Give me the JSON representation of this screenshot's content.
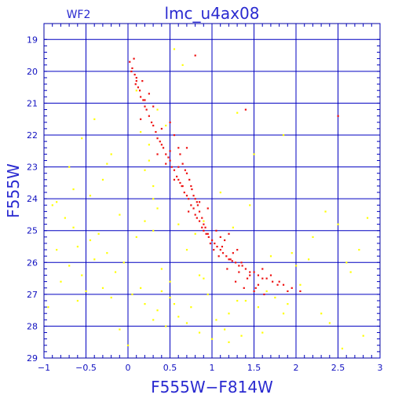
{
  "chart_data": {
    "type": "scatter",
    "title": "lmc_u4ax08",
    "subtitle": "WF2",
    "xlabel": "F555W−F814W",
    "ylabel": "F555W",
    "xlim": [
      -1,
      3
    ],
    "ylim": [
      29,
      18.5
    ],
    "y_inverted": true,
    "grid": true,
    "xticks": [
      -1,
      -0.5,
      0,
      0.5,
      1,
      1.5,
      2,
      2.5,
      3
    ],
    "xtick_labels": [
      "−1",
      "−0.5",
      "0",
      "0.5",
      "1",
      "1.5",
      "2",
      "2.5",
      "3"
    ],
    "yticks": [
      19,
      20,
      21,
      22,
      23,
      24,
      25,
      26,
      27,
      28,
      29
    ],
    "ytick_labels": [
      "19",
      "20",
      "21",
      "22",
      "23",
      "24",
      "25",
      "26",
      "27",
      "28",
      "29"
    ],
    "series": [
      {
        "color": "#ffff00",
        "x": [
          -0.85,
          -0.7,
          -0.55,
          -0.4,
          -0.3,
          -0.2,
          -0.8,
          -0.6,
          -0.45,
          -0.25,
          -0.9,
          -0.75,
          -0.5,
          -0.35,
          -0.15,
          -0.95,
          -0.65,
          -0.05,
          0.1,
          0.2,
          0.3,
          0.35,
          0.4,
          0.5,
          0.55,
          0.2,
          0.25,
          0.3,
          0.15,
          0.1,
          0.35,
          0.45,
          0.25,
          0.3,
          -0.3,
          -0.2,
          -0.1,
          -0.55,
          -0.7,
          -0.85,
          -0.4,
          -0.6,
          0.05,
          0.15,
          0.35,
          0.45,
          0.6,
          0.7,
          0.85,
          0.9,
          1.0,
          1.05,
          1.15,
          1.2,
          1.35,
          1.4,
          1.55,
          1.65,
          1.75,
          1.9,
          2.05,
          2.2,
          2.35,
          2.5,
          2.6,
          2.75,
          2.85,
          2.65,
          2.4,
          2.15,
          1.85,
          1.6,
          1.3,
          0.95,
          0.75,
          0.5,
          0.4,
          0.3,
          0.2,
          0.0,
          -0.1,
          0.6,
          0.7,
          0.8,
          0.9,
          1.1,
          1.25,
          1.45,
          1.7,
          2.0,
          1.3,
          1.5,
          1.2,
          2.3,
          2.55,
          2.8,
          1.85,
          0.55,
          0.65,
          -0.65,
          -0.45,
          -0.25,
          0.85,
          1.95
        ],
        "y": [
          25.6,
          26.1,
          26.4,
          25.9,
          26.8,
          27.1,
          26.6,
          27.2,
          25.3,
          25.7,
          24.2,
          24.6,
          26.9,
          25.1,
          26.3,
          27.4,
          24.9,
          26.0,
          25.2,
          24.7,
          25.0,
          24.3,
          26.2,
          26.6,
          27.3,
          23.1,
          22.8,
          23.6,
          21.9,
          20.6,
          21.2,
          21.7,
          22.3,
          24.0,
          23.4,
          22.6,
          24.5,
          22.1,
          23.0,
          24.1,
          21.5,
          25.5,
          27.0,
          26.8,
          27.5,
          28.0,
          27.7,
          27.9,
          28.2,
          26.5,
          28.4,
          27.8,
          28.1,
          27.6,
          28.3,
          27.2,
          27.4,
          26.9,
          27.1,
          27.3,
          26.7,
          25.2,
          24.4,
          24.8,
          26.0,
          25.6,
          24.6,
          26.3,
          27.9,
          25.9,
          27.6,
          28.2,
          27.2,
          27.0,
          27.4,
          27.1,
          26.9,
          27.8,
          27.3,
          28.6,
          28.1,
          24.8,
          25.6,
          25.1,
          24.7,
          23.8,
          24.9,
          24.2,
          25.8,
          26.1,
          21.3,
          22.6,
          28.5,
          27.6,
          28.7,
          28.3,
          22.0,
          19.3,
          19.8,
          23.7,
          23.9,
          22.9,
          26.4,
          25.7
        ]
      },
      {
        "color": "#ee1111",
        "x": [
          0.02,
          0.05,
          0.08,
          0.1,
          0.04,
          0.12,
          0.14,
          0.09,
          0.18,
          0.2,
          0.22,
          0.15,
          0.25,
          0.28,
          0.3,
          0.33,
          0.35,
          0.38,
          0.42,
          0.4,
          0.45,
          0.48,
          0.5,
          0.52,
          0.55,
          0.58,
          0.6,
          0.62,
          0.64,
          0.67,
          0.7,
          0.72,
          0.75,
          0.78,
          0.8,
          0.82,
          0.85,
          0.88,
          0.9,
          0.93,
          0.96,
          1.0,
          1.03,
          1.06,
          1.1,
          1.13,
          1.17,
          1.2,
          1.24,
          1.28,
          1.32,
          1.36,
          1.4,
          1.45,
          1.5,
          1.55,
          1.6,
          1.65,
          1.72,
          1.78,
          1.85,
          1.95,
          2.05,
          0.6,
          0.65,
          0.7,
          0.75,
          0.8,
          0.85,
          0.9,
          0.95,
          1.05,
          1.15,
          1.25,
          1.35,
          1.45,
          1.55,
          0.55,
          0.62,
          0.68,
          0.73,
          0.78,
          0.83,
          0.88,
          0.98,
          1.08,
          1.18,
          1.28,
          1.38,
          1.5,
          1.62,
          0.35,
          0.45,
          0.5,
          0.4,
          0.55,
          0.3,
          0.25,
          0.2,
          0.1,
          0.07,
          0.15,
          0.17,
          0.65,
          0.72,
          0.7,
          0.76,
          0.82,
          0.92,
          1.02,
          1.12,
          1.22,
          1.32,
          1.42,
          1.52,
          1.6,
          1.7,
          1.8,
          1.9,
          1.1,
          1.2,
          1.3,
          0.95,
          0.85,
          0.6,
          0.5,
          2.5,
          1.4,
          0.8
        ],
        "y": [
          19.7,
          19.9,
          20.1,
          20.3,
          20.0,
          20.5,
          20.6,
          20.4,
          20.9,
          21.1,
          21.2,
          20.8,
          21.4,
          21.6,
          21.7,
          21.9,
          22.1,
          22.2,
          22.4,
          22.3,
          22.6,
          22.7,
          22.8,
          23.0,
          23.1,
          23.3,
          23.4,
          23.5,
          23.6,
          23.8,
          23.9,
          24.0,
          24.2,
          24.3,
          24.5,
          24.6,
          24.7,
          24.9,
          25.0,
          25.1,
          25.2,
          25.3,
          25.4,
          25.5,
          25.6,
          25.7,
          25.8,
          25.9,
          25.95,
          26.0,
          26.1,
          26.1,
          26.2,
          26.3,
          26.3,
          26.4,
          26.5,
          26.5,
          26.6,
          26.7,
          26.7,
          26.8,
          26.9,
          22.4,
          22.9,
          23.2,
          23.6,
          24.0,
          24.4,
          24.8,
          25.1,
          25.0,
          25.3,
          25.7,
          26.0,
          26.4,
          26.7,
          22.0,
          22.6,
          23.1,
          23.4,
          23.9,
          24.2,
          24.6,
          25.4,
          25.8,
          26.2,
          26.6,
          26.8,
          26.9,
          27.0,
          22.6,
          22.9,
          22.5,
          21.8,
          23.4,
          21.1,
          20.7,
          20.9,
          20.2,
          19.6,
          21.5,
          20.3,
          23.6,
          24.4,
          22.4,
          23.7,
          24.1,
          24.9,
          25.6,
          25.5,
          25.9,
          26.3,
          26.5,
          26.8,
          26.2,
          26.4,
          26.6,
          26.9,
          25.2,
          25.1,
          25.6,
          24.3,
          24.1,
          23.0,
          21.6,
          21.4,
          21.2,
          19.5
        ]
      }
    ]
  }
}
